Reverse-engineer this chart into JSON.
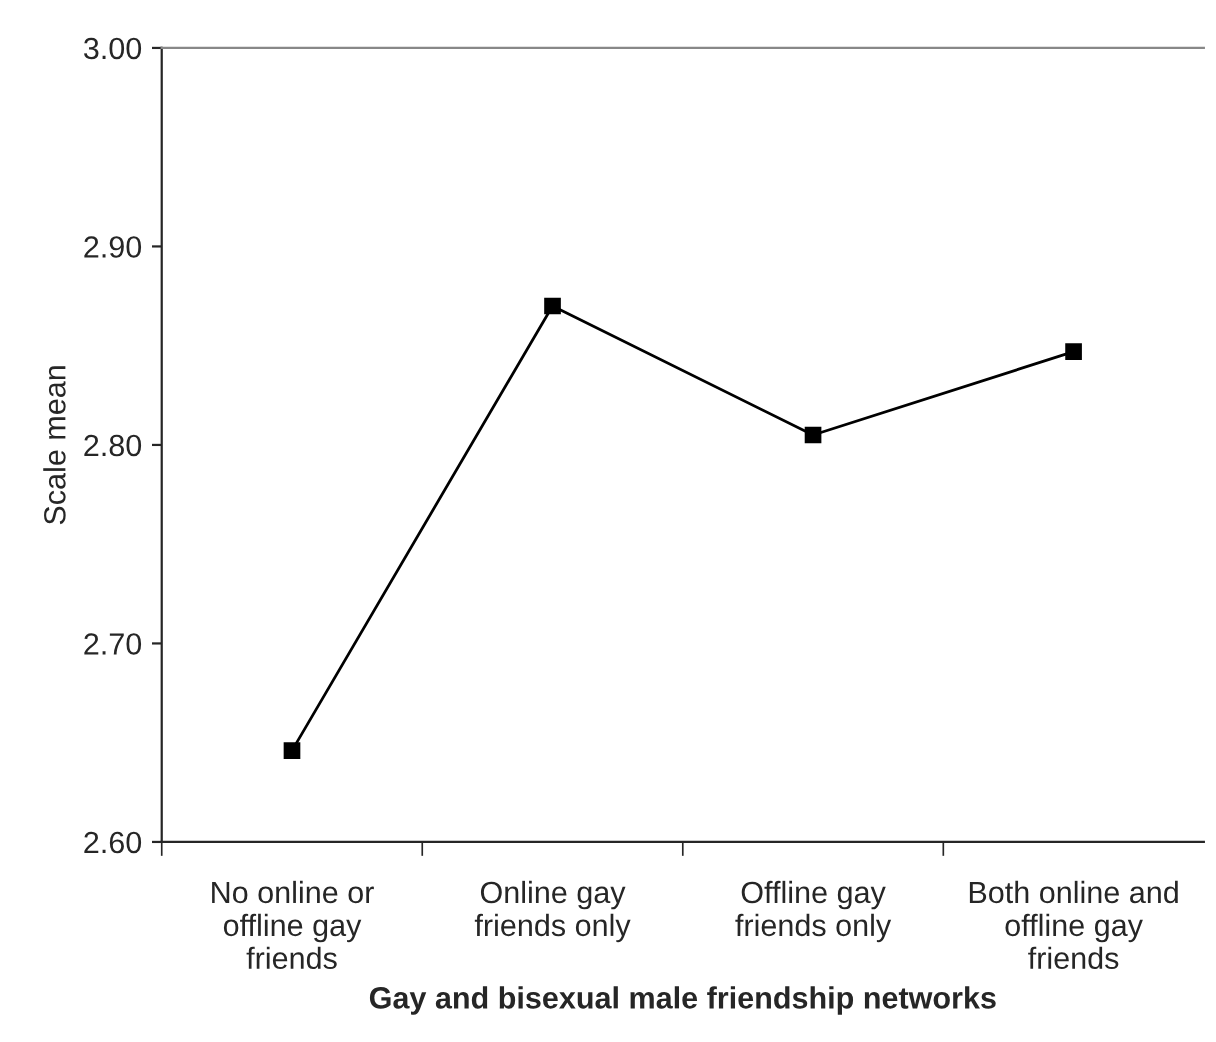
{
  "chart_data": {
    "type": "line",
    "xlabel": "Gay and bisexual male friendship networks",
    "ylabel": "Scale mean",
    "categories": [
      "No online or\noffline gay\nfriends",
      "Online gay\nfriends only",
      "Offline gay\nfriends only",
      "Both online and\noffline gay\nfriends"
    ],
    "series": [
      {
        "color": "#000000",
        "values": [
          2.646,
          2.87,
          2.805,
          2.847
        ]
      }
    ],
    "ylim": [
      2.6,
      3.0
    ],
    "yticks": [
      {
        "value": 2.6,
        "label": "2.60"
      },
      {
        "value": 2.7,
        "label": "2.70"
      },
      {
        "value": 2.8,
        "label": "2.80"
      },
      {
        "value": 2.9,
        "label": "2.90"
      },
      {
        "value": 3.0,
        "label": "3.00"
      }
    ],
    "marker": "square",
    "line_style": "solid",
    "grid": false
  }
}
